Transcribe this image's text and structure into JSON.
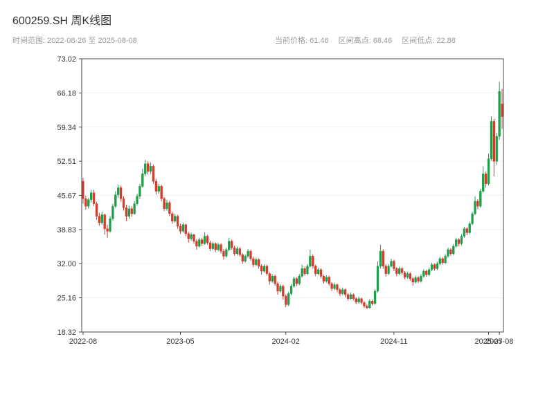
{
  "header": {
    "title": "600259.SH 周K线图",
    "subtitle_left": "时间范围: 2022-08-26 至 2025-08-08",
    "stats": [
      "当前价格: 61.46",
      "区间高点: 68.46",
      "区间低点: 22.88"
    ]
  },
  "chart_data": {
    "type": "candlestick",
    "title": "600259.SH 周K线图",
    "symbol": "600259.SH",
    "interval": "weekly",
    "start_date": "2022-08-26",
    "end_date": "2025-08-08",
    "current_price": 61.46,
    "range_high": 68.46,
    "range_low": 22.88,
    "ylim": [
      18.32,
      73.02
    ],
    "y_ticks": [
      73.02,
      66.18,
      59.34,
      52.51,
      45.67,
      38.83,
      32.0,
      25.16,
      18.32
    ],
    "x_ticks": [
      {
        "index": 0,
        "label": "2022-08"
      },
      {
        "index": 36,
        "label": "2023-05"
      },
      {
        "index": 75,
        "label": "2024-02"
      },
      {
        "index": 115,
        "label": "2024-11"
      },
      {
        "index": 150,
        "label": "2025-07"
      },
      {
        "index": 154,
        "label": "2025-08"
      }
    ],
    "colors": {
      "up": "#1e9e4b",
      "down": "#d33b2c",
      "axis": "#444444",
      "grid": "#f0f0f0",
      "tick_text": "#333333"
    },
    "ohlc": [
      [
        48.5,
        49.2,
        44.0,
        45.0
      ],
      [
        45.0,
        45.6,
        42.8,
        43.5
      ],
      [
        43.5,
        45.2,
        43.0,
        44.8
      ],
      [
        44.8,
        46.8,
        44.2,
        46.2
      ],
      [
        46.2,
        46.8,
        43.5,
        44.0
      ],
      [
        44.0,
        44.4,
        40.8,
        41.5
      ],
      [
        41.5,
        42.2,
        39.6,
        40.2
      ],
      [
        40.2,
        42.4,
        39.8,
        41.8
      ],
      [
        41.8,
        42.0,
        37.8,
        39.0
      ],
      [
        39.0,
        39.8,
        37.2,
        38.5
      ],
      [
        38.5,
        41.5,
        38.2,
        41.0
      ],
      [
        41.0,
        44.0,
        40.6,
        43.5
      ],
      [
        43.5,
        46.5,
        43.2,
        45.8
      ],
      [
        45.8,
        47.8,
        45.2,
        47.2
      ],
      [
        47.2,
        47.6,
        44.4,
        45.0
      ],
      [
        45.0,
        45.5,
        42.6,
        43.2
      ],
      [
        43.2,
        43.8,
        40.5,
        41.5
      ],
      [
        41.5,
        43.6,
        41.0,
        43.0
      ],
      [
        43.0,
        43.5,
        41.4,
        42.0
      ],
      [
        42.0,
        44.5,
        41.8,
        44.0
      ],
      [
        44.0,
        46.0,
        43.6,
        45.5
      ],
      [
        45.5,
        48.0,
        45.0,
        47.5
      ],
      [
        47.5,
        51.0,
        47.2,
        50.0
      ],
      [
        50.0,
        52.8,
        49.5,
        52.0
      ],
      [
        52.0,
        52.5,
        49.8,
        50.5
      ],
      [
        50.5,
        52.3,
        50.0,
        51.5
      ],
      [
        51.5,
        51.8,
        48.0,
        48.5
      ],
      [
        48.5,
        49.0,
        45.8,
        46.5
      ],
      [
        46.5,
        48.0,
        46.0,
        47.5
      ],
      [
        47.5,
        47.8,
        44.5,
        45.0
      ],
      [
        45.0,
        45.4,
        42.5,
        43.0
      ],
      [
        43.0,
        44.8,
        42.6,
        44.2
      ],
      [
        44.2,
        44.6,
        41.5,
        42.0
      ],
      [
        42.0,
        42.4,
        40.0,
        40.5
      ],
      [
        40.5,
        42.0,
        40.2,
        41.5
      ],
      [
        41.5,
        41.8,
        39.0,
        39.5
      ],
      [
        39.5,
        40.0,
        38.0,
        38.5
      ],
      [
        38.5,
        40.2,
        38.2,
        39.8
      ],
      [
        39.8,
        40.0,
        37.5,
        38.0
      ],
      [
        38.0,
        38.4,
        36.2,
        37.0
      ],
      [
        37.0,
        38.2,
        36.6,
        37.8
      ],
      [
        37.8,
        38.0,
        36.0,
        36.5
      ],
      [
        36.5,
        36.9,
        34.8,
        35.5
      ],
      [
        35.5,
        37.2,
        35.2,
        36.8
      ],
      [
        36.8,
        37.2,
        35.5,
        36.0
      ],
      [
        36.0,
        38.3,
        35.8,
        37.5
      ],
      [
        37.5,
        37.8,
        35.8,
        36.2
      ],
      [
        36.2,
        36.6,
        34.5,
        35.0
      ],
      [
        35.0,
        36.4,
        34.7,
        36.0
      ],
      [
        36.0,
        36.3,
        34.3,
        34.8
      ],
      [
        34.8,
        36.2,
        34.5,
        35.8
      ],
      [
        35.8,
        36.1,
        34.0,
        34.5
      ],
      [
        34.5,
        34.9,
        32.8,
        33.5
      ],
      [
        33.5,
        35.2,
        33.2,
        34.8
      ],
      [
        34.8,
        37.2,
        34.5,
        36.5
      ],
      [
        36.5,
        36.8,
        34.8,
        35.2
      ],
      [
        35.2,
        35.6,
        33.6,
        34.0
      ],
      [
        34.0,
        35.4,
        33.7,
        35.0
      ],
      [
        35.0,
        35.3,
        33.4,
        33.8
      ],
      [
        33.8,
        34.1,
        32.0,
        32.5
      ],
      [
        32.5,
        33.9,
        32.2,
        33.5
      ],
      [
        33.5,
        34.9,
        33.2,
        34.5
      ],
      [
        34.5,
        34.8,
        32.6,
        33.0
      ],
      [
        33.0,
        33.4,
        31.3,
        31.8
      ],
      [
        31.8,
        33.2,
        31.5,
        32.8
      ],
      [
        32.8,
        33.1,
        31.0,
        31.5
      ],
      [
        31.5,
        31.9,
        29.8,
        30.5
      ],
      [
        30.5,
        31.9,
        30.2,
        31.5
      ],
      [
        31.5,
        31.8,
        29.6,
        30.0
      ],
      [
        30.0,
        30.3,
        27.8,
        28.5
      ],
      [
        28.5,
        29.9,
        28.2,
        29.5
      ],
      [
        29.5,
        29.8,
        27.6,
        28.0
      ],
      [
        28.0,
        28.4,
        25.8,
        26.5
      ],
      [
        26.5,
        27.9,
        26.2,
        27.5
      ],
      [
        27.5,
        27.8,
        24.8,
        25.5
      ],
      [
        25.5,
        25.8,
        23.3,
        23.8
      ],
      [
        23.8,
        26.4,
        23.5,
        26.0
      ],
      [
        26.0,
        27.9,
        25.7,
        27.5
      ],
      [
        27.5,
        29.4,
        27.2,
        29.0
      ],
      [
        29.0,
        29.3,
        27.5,
        28.0
      ],
      [
        28.0,
        29.9,
        27.7,
        29.5
      ],
      [
        29.5,
        31.8,
        29.2,
        31.0
      ],
      [
        31.0,
        31.4,
        29.6,
        30.0
      ],
      [
        30.0,
        31.9,
        29.7,
        31.5
      ],
      [
        31.5,
        34.8,
        31.2,
        33.5
      ],
      [
        33.5,
        33.9,
        31.0,
        31.5
      ],
      [
        31.5,
        31.8,
        29.5,
        30.0
      ],
      [
        30.0,
        31.2,
        29.7,
        30.8
      ],
      [
        30.8,
        31.1,
        29.0,
        29.5
      ],
      [
        29.5,
        29.8,
        28.0,
        28.5
      ],
      [
        28.5,
        29.7,
        28.2,
        29.3
      ],
      [
        29.3,
        29.6,
        27.6,
        28.0
      ],
      [
        28.0,
        28.3,
        26.5,
        27.0
      ],
      [
        27.0,
        28.2,
        26.7,
        27.8
      ],
      [
        27.8,
        28.0,
        26.3,
        26.8
      ],
      [
        26.8,
        27.1,
        25.5,
        26.0
      ],
      [
        26.0,
        27.2,
        25.7,
        26.8
      ],
      [
        26.8,
        27.0,
        25.3,
        25.8
      ],
      [
        25.8,
        26.1,
        24.6,
        25.0
      ],
      [
        25.0,
        26.2,
        24.8,
        25.8
      ],
      [
        25.8,
        26.0,
        24.6,
        25.0
      ],
      [
        25.0,
        25.3,
        23.9,
        24.3
      ],
      [
        24.3,
        25.4,
        24.0,
        25.0
      ],
      [
        25.0,
        25.2,
        23.8,
        24.2
      ],
      [
        24.2,
        24.5,
        23.1,
        23.5
      ],
      [
        23.5,
        23.9,
        22.88,
        23.2
      ],
      [
        23.2,
        24.9,
        23.0,
        24.5
      ],
      [
        24.5,
        24.8,
        23.6,
        24.0
      ],
      [
        24.0,
        26.9,
        23.8,
        26.5
      ],
      [
        26.5,
        32.5,
        26.2,
        31.5
      ],
      [
        31.5,
        35.8,
        31.0,
        34.5
      ],
      [
        34.5,
        34.9,
        31.0,
        31.5
      ],
      [
        31.5,
        31.9,
        29.4,
        30.0
      ],
      [
        30.0,
        31.9,
        29.7,
        31.5
      ],
      [
        31.5,
        33.0,
        31.2,
        32.5
      ],
      [
        32.5,
        32.8,
        30.5,
        31.0
      ],
      [
        31.0,
        31.3,
        29.5,
        30.0
      ],
      [
        30.0,
        31.4,
        29.7,
        31.0
      ],
      [
        31.0,
        31.3,
        29.8,
        30.2
      ],
      [
        30.2,
        30.5,
        28.9,
        29.3
      ],
      [
        29.3,
        30.4,
        29.0,
        30.0
      ],
      [
        30.0,
        30.3,
        28.6,
        29.0
      ],
      [
        29.0,
        29.3,
        27.6,
        28.3
      ],
      [
        28.3,
        29.6,
        28.0,
        29.2
      ],
      [
        29.2,
        29.5,
        28.1,
        28.5
      ],
      [
        28.5,
        29.9,
        28.2,
        29.5
      ],
      [
        29.5,
        30.9,
        29.2,
        30.5
      ],
      [
        30.5,
        30.8,
        29.4,
        29.8
      ],
      [
        29.8,
        31.2,
        29.5,
        30.8
      ],
      [
        30.8,
        32.2,
        30.5,
        31.8
      ],
      [
        31.8,
        32.1,
        30.6,
        31.0
      ],
      [
        31.0,
        32.4,
        30.7,
        32.0
      ],
      [
        32.0,
        33.4,
        31.7,
        33.0
      ],
      [
        33.0,
        33.3,
        31.8,
        32.2
      ],
      [
        32.2,
        33.9,
        31.9,
        33.5
      ],
      [
        33.5,
        35.2,
        33.2,
        34.8
      ],
      [
        34.8,
        35.1,
        33.6,
        34.0
      ],
      [
        34.0,
        35.9,
        33.7,
        35.5
      ],
      [
        35.5,
        37.2,
        35.2,
        36.8
      ],
      [
        36.8,
        37.1,
        35.5,
        36.0
      ],
      [
        36.0,
        37.9,
        35.7,
        37.5
      ],
      [
        37.5,
        39.4,
        37.2,
        39.0
      ],
      [
        39.0,
        39.3,
        37.7,
        38.2
      ],
      [
        38.2,
        40.4,
        37.9,
        40.0
      ],
      [
        40.0,
        42.4,
        39.7,
        42.0
      ],
      [
        42.0,
        45.5,
        41.7,
        44.5
      ],
      [
        44.5,
        44.9,
        42.9,
        43.5
      ],
      [
        43.5,
        47.0,
        43.2,
        46.5
      ],
      [
        46.5,
        51.5,
        46.2,
        50.0
      ],
      [
        50.0,
        50.5,
        47.2,
        48.0
      ],
      [
        48.0,
        54.0,
        47.7,
        53.0
      ],
      [
        53.0,
        61.5,
        52.6,
        60.5
      ],
      [
        60.5,
        61.0,
        49.5,
        52.5
      ],
      [
        52.5,
        58.2,
        51.8,
        57.5
      ],
      [
        57.5,
        68.46,
        56.8,
        66.5
      ],
      [
        64.0,
        67.0,
        59.0,
        61.46
      ]
    ]
  }
}
